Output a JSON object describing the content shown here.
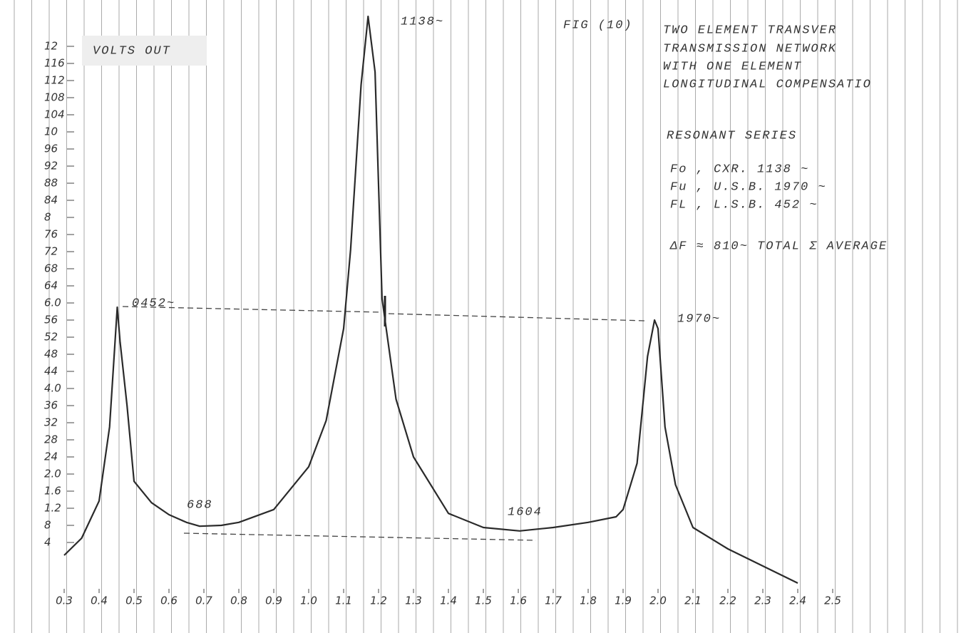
{
  "chart_data": {
    "type": "line",
    "y_label": "VOLTS OUT",
    "peak_label": "1138~",
    "figure": "FIG (10)",
    "title_lines": [
      "TWO ELEMENT TRANSVER",
      "TRANSMISSION NETWORK",
      "WITH ONE ELEMENT",
      "LONGITUDINAL COMPENSATIO"
    ],
    "notes": [
      "RESONANT SERIES",
      "Fo , CXR.  1138 ~",
      "Fu , U.S.B.  1970 ~",
      "FL , L.S.B.   452 ~",
      "ΔF ≈ 810~ TOTAL Σ AVERAGE"
    ],
    "annotations": [
      "0452~",
      "1970~",
      "688",
      "1604"
    ],
    "x": [
      0.3,
      0.35,
      0.4,
      0.43,
      0.452,
      0.46,
      0.48,
      0.5,
      0.55,
      0.6,
      0.65,
      0.688,
      0.75,
      0.8,
      0.9,
      1.0,
      1.05,
      1.1,
      1.12,
      1.15,
      1.17,
      1.19,
      1.21,
      1.25,
      1.3,
      1.4,
      1.5,
      1.604,
      1.7,
      1.8,
      1.88,
      1.9,
      1.94,
      1.97,
      1.99,
      2.0,
      2.02,
      2.05,
      2.1,
      2.2,
      2.4
    ],
    "series": [
      {
        "color": "#2a2a2a",
        "values": [
          0.1,
          0.5,
          1.37,
          3.1,
          5.9,
          5.1,
          3.6,
          1.83,
          1.33,
          1.05,
          0.87,
          0.78,
          0.8,
          0.87,
          1.17,
          2.17,
          3.25,
          5.4,
          7.25,
          11.1,
          12.7,
          11.4,
          6.1,
          3.75,
          2.4,
          1.08,
          0.75,
          0.67,
          0.75,
          0.87,
          1.0,
          1.17,
          2.25,
          4.75,
          5.6,
          5.4,
          3.1,
          1.75,
          0.75,
          0.25,
          -0.55
        ]
      }
    ],
    "xlim": [
      0.3,
      2.5
    ],
    "ylim": [
      -1.2,
      12.8
    ],
    "xticks": [
      0.3,
      0.4,
      0.5,
      0.6,
      0.7,
      0.8,
      0.9,
      {
        "value": 1,
        "label": "1.0"
      },
      1.1,
      1.2,
      1.3,
      1.4,
      1.5,
      1.6,
      1.7,
      1.8,
      1.9,
      {
        "value": 2,
        "label": "2.0"
      },
      2.1,
      2.2,
      2.3,
      2.4,
      2.5
    ],
    "yticks": [
      {
        "value": 0.4,
        "label": "4"
      },
      {
        "value": 0.8,
        "label": "8"
      },
      1.2,
      1.6,
      {
        "value": 2,
        "label": "2.0"
      },
      {
        "value": 2.4,
        "label": "24"
      },
      {
        "value": 2.8,
        "label": "28"
      },
      {
        "value": 3.2,
        "label": "32"
      },
      {
        "value": 3.6,
        "label": "36"
      },
      {
        "value": 4,
        "label": "4.0"
      },
      {
        "value": 4.4,
        "label": "44"
      },
      {
        "value": 4.8,
        "label": "48"
      },
      {
        "value": 5.2,
        "label": "52"
      },
      {
        "value": 5.6,
        "label": "56"
      },
      {
        "value": 6,
        "label": "6.0"
      },
      {
        "value": 6.4,
        "label": "64"
      },
      {
        "value": 6.8,
        "label": "68"
      },
      {
        "value": 7.2,
        "label": "72"
      },
      {
        "value": 7.6,
        "label": "76"
      },
      8,
      {
        "value": 8.4,
        "label": "84"
      },
      {
        "value": 8.8,
        "label": "88"
      },
      {
        "value": 9.2,
        "label": "92"
      },
      {
        "value": 9.6,
        "label": "96"
      },
      10,
      {
        "value": 10.4,
        "label": "104"
      },
      {
        "value": 10.8,
        "label": "108"
      },
      {
        "value": 11.2,
        "label": "112"
      },
      {
        "value": 11.6,
        "label": "116"
      },
      12
    ]
  }
}
